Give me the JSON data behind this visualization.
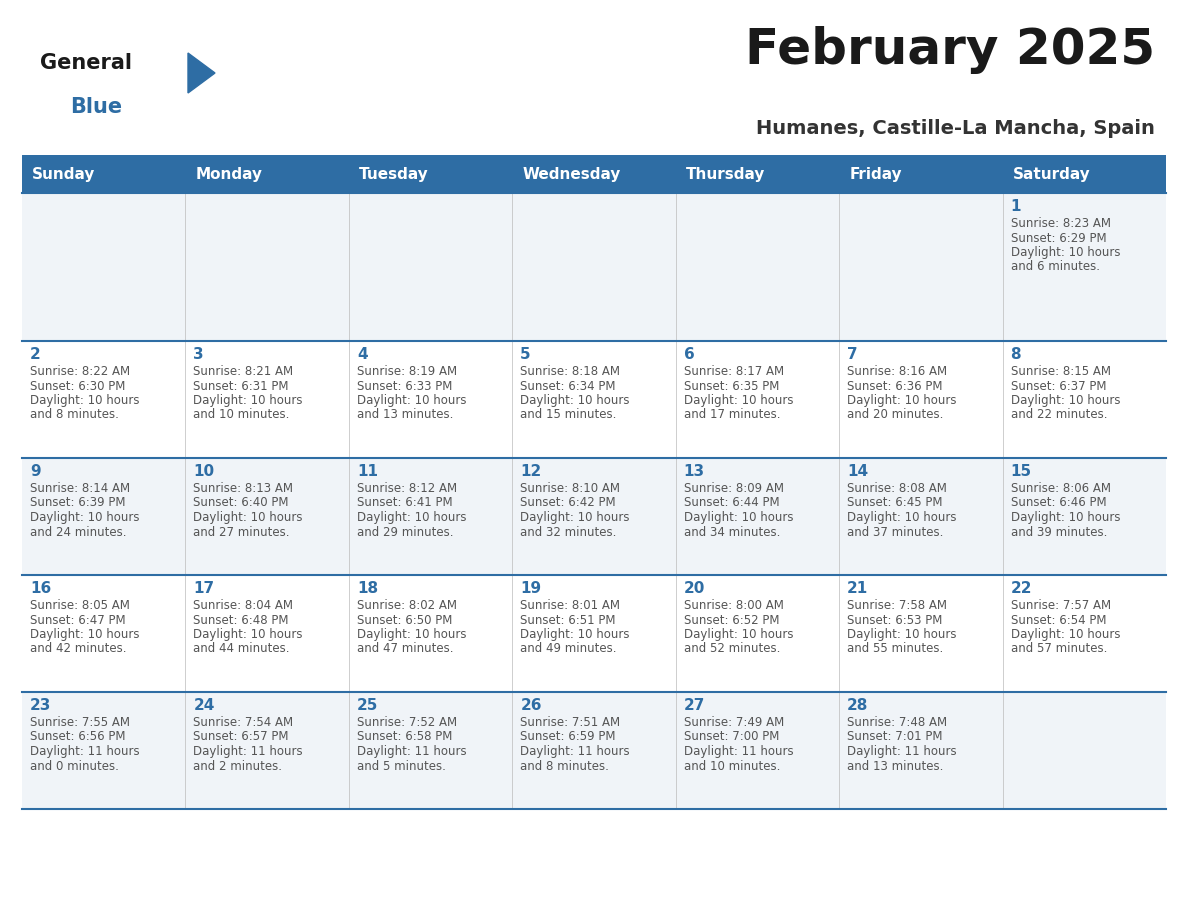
{
  "title": "February 2025",
  "subtitle": "Humanes, Castille-La Mancha, Spain",
  "header_bg": "#2E6DA4",
  "header_text": "#FFFFFF",
  "row_bg_odd": "#F0F4F8",
  "row_bg_even": "#FFFFFF",
  "day_text_color": "#2E6DA4",
  "info_text_color": "#555555",
  "border_color": "#2E6DA4",
  "days_of_week": [
    "Sunday",
    "Monday",
    "Tuesday",
    "Wednesday",
    "Thursday",
    "Friday",
    "Saturday"
  ],
  "weeks": [
    [
      {
        "day": null,
        "info": ""
      },
      {
        "day": null,
        "info": ""
      },
      {
        "day": null,
        "info": ""
      },
      {
        "day": null,
        "info": ""
      },
      {
        "day": null,
        "info": ""
      },
      {
        "day": null,
        "info": ""
      },
      {
        "day": 1,
        "info": "Sunrise: 8:23 AM\nSunset: 6:29 PM\nDaylight: 10 hours\nand 6 minutes."
      }
    ],
    [
      {
        "day": 2,
        "info": "Sunrise: 8:22 AM\nSunset: 6:30 PM\nDaylight: 10 hours\nand 8 minutes."
      },
      {
        "day": 3,
        "info": "Sunrise: 8:21 AM\nSunset: 6:31 PM\nDaylight: 10 hours\nand 10 minutes."
      },
      {
        "day": 4,
        "info": "Sunrise: 8:19 AM\nSunset: 6:33 PM\nDaylight: 10 hours\nand 13 minutes."
      },
      {
        "day": 5,
        "info": "Sunrise: 8:18 AM\nSunset: 6:34 PM\nDaylight: 10 hours\nand 15 minutes."
      },
      {
        "day": 6,
        "info": "Sunrise: 8:17 AM\nSunset: 6:35 PM\nDaylight: 10 hours\nand 17 minutes."
      },
      {
        "day": 7,
        "info": "Sunrise: 8:16 AM\nSunset: 6:36 PM\nDaylight: 10 hours\nand 20 minutes."
      },
      {
        "day": 8,
        "info": "Sunrise: 8:15 AM\nSunset: 6:37 PM\nDaylight: 10 hours\nand 22 minutes."
      }
    ],
    [
      {
        "day": 9,
        "info": "Sunrise: 8:14 AM\nSunset: 6:39 PM\nDaylight: 10 hours\nand 24 minutes."
      },
      {
        "day": 10,
        "info": "Sunrise: 8:13 AM\nSunset: 6:40 PM\nDaylight: 10 hours\nand 27 minutes."
      },
      {
        "day": 11,
        "info": "Sunrise: 8:12 AM\nSunset: 6:41 PM\nDaylight: 10 hours\nand 29 minutes."
      },
      {
        "day": 12,
        "info": "Sunrise: 8:10 AM\nSunset: 6:42 PM\nDaylight: 10 hours\nand 32 minutes."
      },
      {
        "day": 13,
        "info": "Sunrise: 8:09 AM\nSunset: 6:44 PM\nDaylight: 10 hours\nand 34 minutes."
      },
      {
        "day": 14,
        "info": "Sunrise: 8:08 AM\nSunset: 6:45 PM\nDaylight: 10 hours\nand 37 minutes."
      },
      {
        "day": 15,
        "info": "Sunrise: 8:06 AM\nSunset: 6:46 PM\nDaylight: 10 hours\nand 39 minutes."
      }
    ],
    [
      {
        "day": 16,
        "info": "Sunrise: 8:05 AM\nSunset: 6:47 PM\nDaylight: 10 hours\nand 42 minutes."
      },
      {
        "day": 17,
        "info": "Sunrise: 8:04 AM\nSunset: 6:48 PM\nDaylight: 10 hours\nand 44 minutes."
      },
      {
        "day": 18,
        "info": "Sunrise: 8:02 AM\nSunset: 6:50 PM\nDaylight: 10 hours\nand 47 minutes."
      },
      {
        "day": 19,
        "info": "Sunrise: 8:01 AM\nSunset: 6:51 PM\nDaylight: 10 hours\nand 49 minutes."
      },
      {
        "day": 20,
        "info": "Sunrise: 8:00 AM\nSunset: 6:52 PM\nDaylight: 10 hours\nand 52 minutes."
      },
      {
        "day": 21,
        "info": "Sunrise: 7:58 AM\nSunset: 6:53 PM\nDaylight: 10 hours\nand 55 minutes."
      },
      {
        "day": 22,
        "info": "Sunrise: 7:57 AM\nSunset: 6:54 PM\nDaylight: 10 hours\nand 57 minutes."
      }
    ],
    [
      {
        "day": 23,
        "info": "Sunrise: 7:55 AM\nSunset: 6:56 PM\nDaylight: 11 hours\nand 0 minutes."
      },
      {
        "day": 24,
        "info": "Sunrise: 7:54 AM\nSunset: 6:57 PM\nDaylight: 11 hours\nand 2 minutes."
      },
      {
        "day": 25,
        "info": "Sunrise: 7:52 AM\nSunset: 6:58 PM\nDaylight: 11 hours\nand 5 minutes."
      },
      {
        "day": 26,
        "info": "Sunrise: 7:51 AM\nSunset: 6:59 PM\nDaylight: 11 hours\nand 8 minutes."
      },
      {
        "day": 27,
        "info": "Sunrise: 7:49 AM\nSunset: 7:00 PM\nDaylight: 11 hours\nand 10 minutes."
      },
      {
        "day": 28,
        "info": "Sunrise: 7:48 AM\nSunset: 7:01 PM\nDaylight: 11 hours\nand 13 minutes."
      },
      {
        "day": null,
        "info": ""
      }
    ]
  ],
  "fig_width": 11.88,
  "fig_height": 9.18,
  "dpi": 100
}
